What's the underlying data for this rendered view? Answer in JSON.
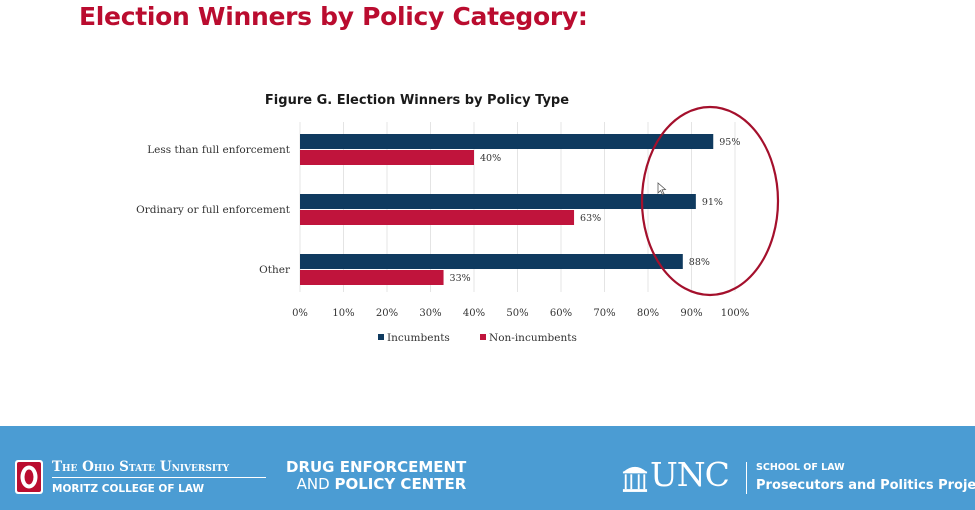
{
  "slide": {
    "title": "Election Winners by Policy Category:"
  },
  "chart_data": {
    "type": "bar",
    "orientation": "horizontal",
    "title": "Figure G. Election Winners by Policy Type",
    "categories": [
      "Less than full enforcement",
      "Ordinary or full enforcement",
      "Other"
    ],
    "series": [
      {
        "name": "Incumbents",
        "values": [
          95,
          91,
          88
        ],
        "color": "#0f3a5f"
      },
      {
        "name": "Non-incumbents",
        "values": [
          40,
          63,
          33
        ],
        "color": "#c0143c"
      }
    ],
    "data_labels": [
      [
        "95%",
        "91%",
        "88%"
      ],
      [
        "40%",
        "63%",
        "33%"
      ]
    ],
    "xlim": [
      0,
      100
    ],
    "xticks": [
      0,
      10,
      20,
      30,
      40,
      50,
      60,
      70,
      80,
      90,
      100
    ],
    "tick_labels": [
      "0%",
      "10%",
      "20%",
      "30%",
      "40%",
      "50%",
      "60%",
      "70%",
      "80%",
      "90%",
      "100%"
    ],
    "grid": true,
    "legend_position": "bottom",
    "annotation": "red ellipse circling the Incumbents bar ends",
    "annotation_color": "#a4102c"
  },
  "footer": {
    "background": "#4b9cd3",
    "osu": {
      "name": "The Ohio State University",
      "college": "MORITZ COLLEGE OF LAW",
      "logo_color": "#ba0c2f"
    },
    "depc": {
      "line1": "DRUG ENFORCEMENT",
      "line2_a": "AND ",
      "line2_b": "POLICY CENTER"
    },
    "unc": {
      "wordmark": "UNC",
      "school": "SCHOOL OF LAW",
      "project": "Prosecutors and Politics Project"
    }
  }
}
